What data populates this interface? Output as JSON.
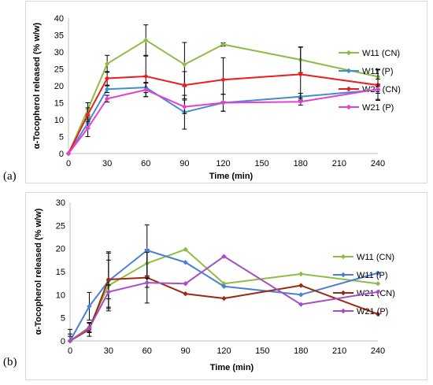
{
  "chart_data": [
    {
      "panel_label": "(a)",
      "type": "line",
      "xlabel": "Time (min)",
      "ylabel": "α-Tocopherol released (% w/w)",
      "xlim": [
        0,
        240
      ],
      "ylim": [
        0,
        40
      ],
      "xticks": [
        0,
        30,
        60,
        90,
        120,
        150,
        180,
        210,
        240
      ],
      "yticks": [
        0,
        5,
        10,
        15,
        20,
        25,
        30,
        35,
        40
      ],
      "legend_position": "right",
      "grid": false,
      "series": [
        {
          "name": "W11 (CN)",
          "color": "#8fbc45",
          "x": [
            0,
            15,
            30,
            60,
            90,
            120,
            180,
            240
          ],
          "y": [
            0,
            13,
            26.5,
            33.5,
            26.3,
            32.2,
            27.7,
            22.7
          ],
          "err": [
            0,
            2,
            2.5,
            4.5,
            6.5,
            0.5,
            3.8,
            2.2
          ]
        },
        {
          "name": "W11 (P)",
          "color": "#3f8fd0",
          "x": [
            0,
            15,
            30,
            60,
            90,
            120,
            180,
            240
          ],
          "y": [
            0,
            9,
            19,
            19.5,
            12.2,
            15,
            16.8,
            18.8
          ],
          "err": [
            0,
            1.5,
            1,
            1.5,
            5,
            2.5,
            1,
            1
          ]
        },
        {
          "name": "W21 (CN)",
          "color": "#ee1c1c",
          "x": [
            0,
            15,
            30,
            60,
            90,
            120,
            180,
            240
          ],
          "y": [
            0,
            11.5,
            22.2,
            22.8,
            20.2,
            21.8,
            23.4,
            20.2
          ],
          "err": [
            0,
            2,
            2,
            6,
            4,
            6.5,
            8,
            4.5
          ]
        },
        {
          "name": "W21 (P)",
          "color": "#e83fd0",
          "x": [
            0,
            15,
            30,
            60,
            90,
            120,
            180,
            240
          ],
          "y": [
            0,
            7.5,
            16.2,
            18.8,
            13.8,
            15,
            15.3,
            19
          ],
          "err": [
            0,
            2.5,
            1,
            2,
            2,
            2.5,
            1,
            3
          ]
        }
      ]
    },
    {
      "panel_label": "(b)",
      "type": "line",
      "xlabel": "Time (min)",
      "ylabel": "α-Tocopherol released (% w/w)",
      "xlim": [
        0,
        240
      ],
      "ylim": [
        0,
        30
      ],
      "xticks": [
        0,
        30,
        60,
        90,
        120,
        150,
        180,
        210,
        240
      ],
      "yticks": [
        0,
        5,
        10,
        15,
        20,
        25,
        30
      ],
      "legend_position": "right",
      "grid": false,
      "series": [
        {
          "name": "W11 (CN)",
          "color": "#8fbc45",
          "x": [
            0,
            15,
            30,
            60,
            90,
            120,
            180,
            240
          ],
          "y": [
            0,
            3,
            12,
            16.8,
            19.8,
            12.4,
            14.5,
            12.4
          ],
          "err": [
            0,
            1,
            5.5,
            3,
            0,
            0,
            0,
            0
          ]
        },
        {
          "name": "W11 (P)",
          "color": "#4a7fd8",
          "x": [
            0,
            15,
            30,
            60,
            90,
            120,
            180,
            240
          ],
          "y": [
            0,
            7.5,
            13,
            19.6,
            17,
            11.8,
            10,
            14.7
          ],
          "err": [
            1.5,
            3,
            6,
            5.5,
            0,
            0,
            0,
            0
          ]
        },
        {
          "name": "W21 (CN)",
          "color": "#9b2a0e",
          "x": [
            0,
            15,
            30,
            60,
            90,
            120,
            180,
            240
          ],
          "y": [
            0,
            2.5,
            13.3,
            13.7,
            10.2,
            9.2,
            12,
            5.8
          ],
          "err": [
            2.5,
            1.5,
            6,
            5.5,
            0,
            0,
            0,
            0
          ]
        },
        {
          "name": "W21 (P)",
          "color": "#a64fc4",
          "x": [
            0,
            15,
            30,
            60,
            90,
            120,
            180,
            240
          ],
          "y": [
            0,
            2.8,
            10.6,
            12.6,
            12.4,
            18.3,
            7.9,
            10.6
          ],
          "err": [
            1,
            1,
            1.5,
            1,
            0,
            0,
            0,
            0
          ]
        }
      ]
    }
  ]
}
